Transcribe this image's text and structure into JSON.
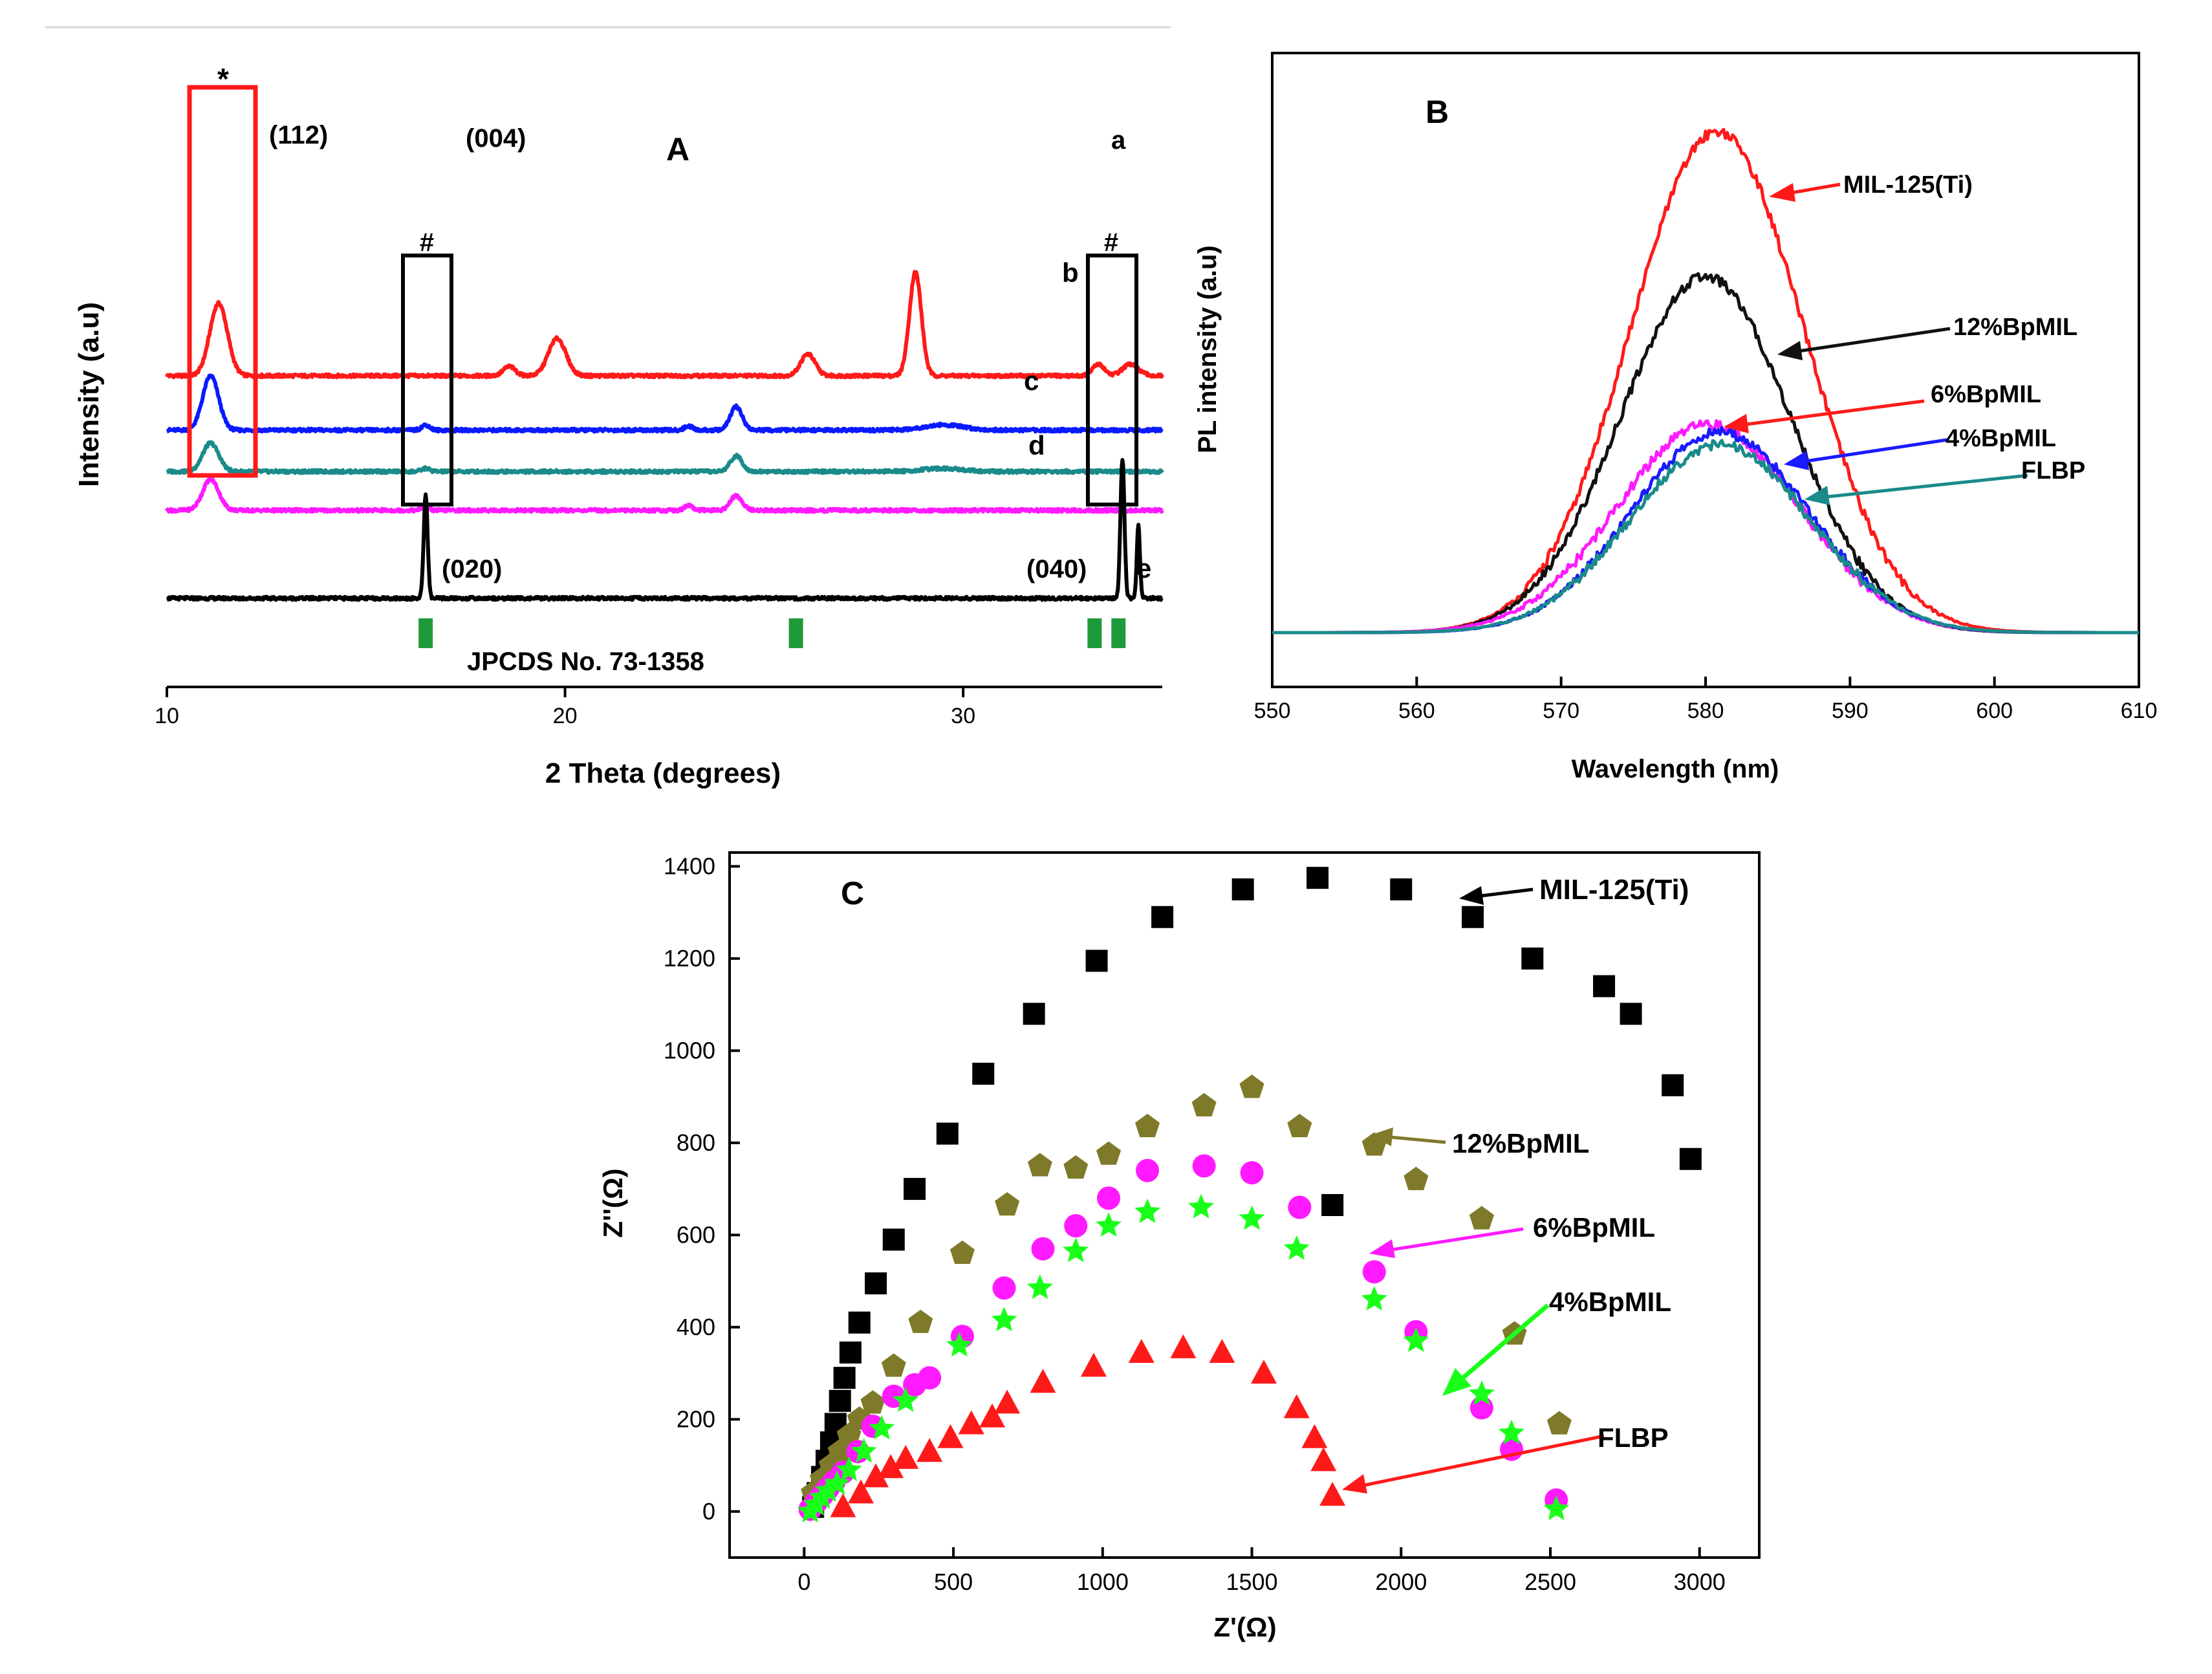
{
  "chart_data": [
    {
      "panel": "A",
      "type": "line",
      "panel_label": "A",
      "xlabel": "2 Theta (degrees)",
      "ylabel": "Intensity (a.u)",
      "xlim": [
        10,
        35
      ],
      "x_ticks": [
        "10",
        "20",
        "30"
      ],
      "x_tick_values": [
        10,
        20,
        30
      ],
      "series": [
        {
          "name": "a",
          "color": "#ff1a1a",
          "offset": 4.3,
          "peaks": [
            [
              11.3,
              1.4,
              0.22
            ],
            [
              18.6,
              0.18,
              0.15
            ],
            [
              19.8,
              0.72,
              0.22
            ],
            [
              26.1,
              0.42,
              0.18
            ],
            [
              28.8,
              2.0,
              0.15
            ],
            [
              33.4,
              0.22,
              0.15
            ],
            [
              34.2,
              0.22,
              0.2
            ]
          ]
        },
        {
          "name": "b",
          "color": "#0a1aff",
          "offset": 3.25,
          "peaks": [
            [
              11.1,
              1.05,
              0.2
            ],
            [
              16.5,
              0.1,
              0.1
            ],
            [
              23.1,
              0.08,
              0.1
            ],
            [
              24.3,
              0.45,
              0.15
            ],
            [
              29.5,
              0.1,
              0.5
            ]
          ]
        },
        {
          "name": "c",
          "color": "#1a8a8a",
          "offset": 2.45,
          "peaks": [
            [
              11.1,
              0.55,
              0.2
            ],
            [
              16.5,
              0.06,
              0.1
            ],
            [
              24.3,
              0.3,
              0.15
            ],
            [
              29.5,
              0.06,
              0.5
            ]
          ]
        },
        {
          "name": "d",
          "color": "#ff1aff",
          "offset": 1.7,
          "peaks": [
            [
              11.1,
              0.6,
              0.2
            ],
            [
              16.5,
              0.12,
              0.08
            ],
            [
              23.1,
              0.1,
              0.1
            ],
            [
              24.3,
              0.28,
              0.15
            ]
          ]
        },
        {
          "name": "e",
          "color": "#000000",
          "offset": 0.0,
          "peaks": [
            [
              16.5,
              2.0,
              0.05
            ],
            [
              34.0,
              2.7,
              0.05
            ],
            [
              34.4,
              1.4,
              0.04
            ]
          ]
        }
      ],
      "curve_labels": [
        "a",
        "b",
        "c",
        "d",
        "e"
      ],
      "annotations": {
        "star": "*",
        "hash1": "#",
        "hash2": "#",
        "p112": "(112)",
        "p004": "(004)",
        "p020": "(020)",
        "p040": "(040)",
        "reference": "JPCDS No. 73-1358"
      },
      "reference_ticks": [
        16.5,
        25.8,
        33.3,
        33.9
      ],
      "highlight_colors": {
        "star_box": "#ff1a1a",
        "hash_box": "#000000",
        "reference": "#1f9a3a"
      }
    },
    {
      "panel": "B",
      "type": "line",
      "panel_label": "B",
      "xlabel": "Wavelength (nm)",
      "ylabel": "PL intensity (a.u)",
      "xlim": [
        550,
        610
      ],
      "x_ticks": [
        "550",
        "560",
        "570",
        "580",
        "590",
        "600",
        "610"
      ],
      "x_tick_values": [
        550,
        560,
        570,
        580,
        590,
        600,
        610
      ],
      "series": [
        {
          "name": "MIL-125(Ti)",
          "color": "#ff1a1a",
          "center": 580.8,
          "amplitude": 1.0,
          "sigma": 6.0
        },
        {
          "name": "12%BpMIL",
          "color": "#111111",
          "center": 580.0,
          "amplitude": 0.71,
          "sigma": 5.9
        },
        {
          "name": "6%BpMIL",
          "color": "#ff1aff",
          "center": 580.2,
          "amplitude": 0.415,
          "sigma": 6.3
        },
        {
          "name": "4%BpMIL",
          "color": "#1a1aff",
          "center": 581.0,
          "amplitude": 0.4,
          "sigma": 6.1
        },
        {
          "name": "FLBP",
          "color": "#1a8a8a",
          "center": 581.0,
          "amplitude": 0.375,
          "sigma": 6.2
        }
      ],
      "curve_labels": [
        "MIL-125(Ti)",
        "12%BpMIL",
        "6%BpMIL",
        "4%BpMIL",
        "FLBP"
      ]
    },
    {
      "panel": "C",
      "type": "scatter",
      "panel_label": "C",
      "xlabel": "Z'(Ω)",
      "ylabel": "Z''(Ω)",
      "xlim": [
        -250,
        3200
      ],
      "ylim": [
        -100,
        1430
      ],
      "x_ticks": [
        "0",
        "500",
        "1000",
        "1500",
        "2000",
        "2500",
        "3000"
      ],
      "x_tick_values": [
        0,
        500,
        1000,
        1500,
        2000,
        2500,
        3000
      ],
      "y_ticks": [
        "0",
        "200",
        "400",
        "600",
        "800",
        "1000",
        "1200",
        "1400"
      ],
      "y_tick_values": [
        0,
        200,
        400,
        600,
        800,
        1000,
        1200,
        1400
      ],
      "series": [
        {
          "name": "MIL-125(Ti)",
          "marker": "square",
          "color": "#000000",
          "points": [
            [
              30,
              10
            ],
            [
              45,
              40
            ],
            [
              60,
              75
            ],
            [
              75,
              110
            ],
            [
              90,
              150
            ],
            [
              105,
              190
            ],
            [
              120,
              240
            ],
            [
              135,
              290
            ],
            [
              155,
              345
            ],
            [
              185,
              410
            ],
            [
              240,
              495
            ],
            [
              300,
              590
            ],
            [
              370,
              700
            ],
            [
              480,
              820
            ],
            [
              600,
              950
            ],
            [
              770,
              1080
            ],
            [
              980,
              1195
            ],
            [
              1200,
              1290
            ],
            [
              1470,
              1350
            ],
            [
              1720,
              1375
            ],
            [
              2000,
              1350
            ],
            [
              2240,
              1290
            ],
            [
              2440,
              1200
            ],
            [
              2680,
              1140
            ],
            [
              2770,
              1080
            ],
            [
              2910,
              925
            ],
            [
              2970,
              765
            ],
            [
              1770,
              665
            ]
          ]
        },
        {
          "name": "12%BpMIL",
          "marker": "pentagon",
          "color": "#7f7a2a",
          "points": [
            [
              30,
              40
            ],
            [
              60,
              70
            ],
            [
              90,
              100
            ],
            [
              120,
              130
            ],
            [
              150,
              165
            ],
            [
              185,
              200
            ],
            [
              230,
              235
            ],
            [
              300,
              315
            ],
            [
              390,
              410
            ],
            [
              530,
              560
            ],
            [
              680,
              665
            ],
            [
              790,
              750
            ],
            [
              910,
              745
            ],
            [
              1020,
              775
            ],
            [
              1150,
              835
            ],
            [
              1340,
              880
            ],
            [
              1500,
              920
            ],
            [
              1660,
              835
            ],
            [
              1910,
              795
            ],
            [
              2050,
              720
            ],
            [
              2270,
              635
            ],
            [
              2380,
              385
            ],
            [
              2530,
              190
            ]
          ]
        },
        {
          "name": "6%BpMIL",
          "marker": "circle",
          "color": "#ff1aff",
          "points": [
            [
              20,
              5
            ],
            [
              40,
              20
            ],
            [
              60,
              35
            ],
            [
              80,
              50
            ],
            [
              100,
              65
            ],
            [
              130,
              85
            ],
            [
              180,
              130
            ],
            [
              230,
              185
            ],
            [
              300,
              250
            ],
            [
              370,
              275
            ],
            [
              420,
              290
            ],
            [
              530,
              380
            ],
            [
              670,
              485
            ],
            [
              800,
              570
            ],
            [
              910,
              620
            ],
            [
              1020,
              680
            ],
            [
              1150,
              740
            ],
            [
              1340,
              750
            ],
            [
              1500,
              735
            ],
            [
              1660,
              660
            ],
            [
              1910,
              520
            ],
            [
              2050,
              390
            ],
            [
              2270,
              225
            ],
            [
              2370,
              135
            ],
            [
              2520,
              25
            ]
          ]
        },
        {
          "name": "4%BpMIL",
          "marker": "star",
          "color": "#1aff1a",
          "points": [
            [
              20,
              0
            ],
            [
              40,
              15
            ],
            [
              60,
              30
            ],
            [
              80,
              45
            ],
            [
              110,
              60
            ],
            [
              150,
              90
            ],
            [
              200,
              130
            ],
            [
              260,
              180
            ],
            [
              340,
              240
            ],
            [
              520,
              360
            ],
            [
              670,
              415
            ],
            [
              790,
              485
            ],
            [
              910,
              565
            ],
            [
              1020,
              620
            ],
            [
              1150,
              650
            ],
            [
              1330,
              660
            ],
            [
              1500,
              635
            ],
            [
              1650,
              570
            ],
            [
              1910,
              460
            ],
            [
              2050,
              370
            ],
            [
              2270,
              255
            ],
            [
              2370,
              170
            ],
            [
              2520,
              5
            ]
          ]
        },
        {
          "name": "FLBP",
          "marker": "triangle",
          "color": "#ff1a1a",
          "points": [
            [
              130,
              10
            ],
            [
              190,
              40
            ],
            [
              240,
              75
            ],
            [
              290,
              95
            ],
            [
              340,
              115
            ],
            [
              420,
              130
            ],
            [
              490,
              160
            ],
            [
              560,
              190
            ],
            [
              630,
              205
            ],
            [
              680,
              235
            ],
            [
              800,
              280
            ],
            [
              970,
              315
            ],
            [
              1130,
              345
            ],
            [
              1270,
              355
            ],
            [
              1400,
              345
            ],
            [
              1540,
              300
            ],
            [
              1650,
              225
            ],
            [
              1710,
              160
            ],
            [
              1740,
              110
            ],
            [
              1770,
              35
            ]
          ]
        }
      ],
      "curve_labels": [
        "MIL-125(Ti)",
        "12%BpMIL",
        "6%BpMIL",
        "4%BpMIL",
        "FLBP"
      ]
    }
  ]
}
